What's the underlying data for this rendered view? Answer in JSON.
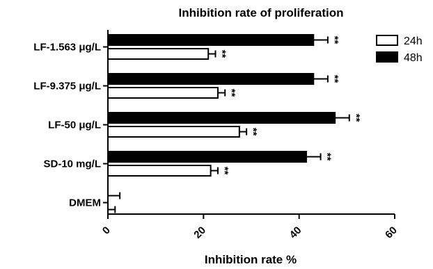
{
  "chart_data": {
    "type": "bar",
    "orientation": "horizontal",
    "title": "Inhibition rate of proliferation",
    "xlabel": "Inhibition rate %",
    "ylabel": "",
    "xlim": [
      0,
      60
    ],
    "xticks": [
      "0",
      "20",
      "40",
      "60"
    ],
    "grid": false,
    "legend_position": "top-right",
    "categories": [
      "LF-1.563 μg/L",
      "LF-9.375 μg/L",
      "LF-50 μg/L",
      "SD-10 mg/L",
      "DMEM"
    ],
    "series": [
      {
        "name": "24h",
        "color": "#ffffff",
        "values": [
          21,
          23,
          27.5,
          21.5,
          0
        ],
        "errors": [
          1.5,
          1.5,
          1.5,
          1.5,
          1.5
        ],
        "significance": [
          "**",
          "**",
          "**",
          "**",
          ""
        ]
      },
      {
        "name": "48h",
        "color": "#000000",
        "values": [
          43,
          43,
          47.5,
          41.5,
          0
        ],
        "errors": [
          3,
          3,
          3,
          3,
          2.5
        ],
        "significance": [
          "**",
          "**",
          "**",
          "**",
          ""
        ]
      }
    ]
  }
}
